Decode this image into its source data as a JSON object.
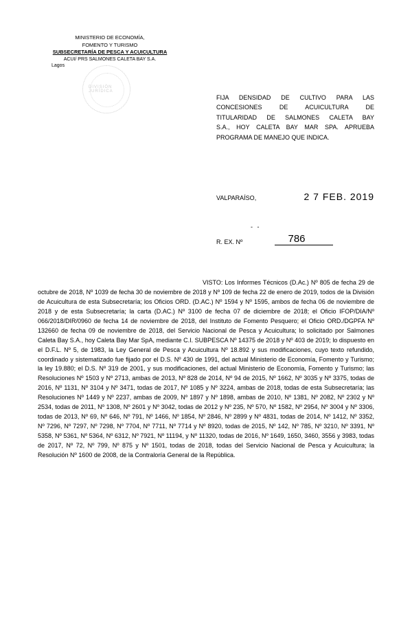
{
  "header": {
    "line1": "MINISTERIO DE ECONOMÍA,",
    "line2": "FOMENTO Y TURISMO",
    "line3": "SUBSECRETARÍA DE PESCA Y ACUICULTURA",
    "line4": "ACUI/ PRS SALMONES CALETA BAY S.A.",
    "line5": "Lagos"
  },
  "stamp": {
    "text": "DIVISIÓN JURÍDICA"
  },
  "title": {
    "line1": "FIJA DENSIDAD DE CULTIVO PARA LAS",
    "line2": "CONCESIONES DE ACUICULTURA DE",
    "line3": "TITULARIDAD DE SALMONES CALETA BAY",
    "line4": "S.A., HOY CALETA BAY MAR SPA. APRUEBA",
    "line5": "PROGRAMA DE MANEJO QUE INDICA."
  },
  "location": "VALPARAÍSO,",
  "date": "2 7 FEB. 2019",
  "rex": {
    "label": "R. EX. Nº",
    "number": "786"
  },
  "body": {
    "visto_label": "VISTO:",
    "text": "Los Informes Técnicos (D.Ac.) Nº 805 de fecha 29 de octubre de 2018, Nº 1039 de fecha 30 de noviembre de 2018 y Nº 109 de fecha 22 de enero de 2019, todos de la División de Acuicultura de esta Subsecretaría; los Oficios ORD. (D.AC.) Nº 1594 y Nº 1595, ambos de fecha 06 de noviembre de 2018 y de esta Subsecretaría; la carta (D.AC.) Nº 3100 de fecha 07 de diciembre de 2018; el Oficio IFOP/DIA/Nº 066/2018/DIR/0960 de fecha 14 de noviembre de 2018, del Instituto de Fomento Pesquero; el Oficio ORD./DGPFA Nº 132660 de fecha 09 de noviembre de 2018, del Servicio Nacional de Pesca y Acuicultura; lo solicitado por Salmones Caleta Bay S.A., hoy Caleta Bay Mar SpA, mediante C.I. SUBPESCA Nº 14375 de 2018 y Nº 403 de 2019; lo dispuesto en el D.F.L. Nº 5, de 1983, la Ley General de Pesca y Acuicultura Nº 18.892 y sus modificaciones, cuyo texto refundido, coordinado y sistematizado fue fijado por el D.S. Nº 430 de 1991, del actual Ministerio de Economía, Fomento y Turismo; la ley 19.880; el D.S. Nº 319 de 2001, y sus modificaciones, del actual Ministerio de Economía, Fomento y Turismo; las Resoluciones Nº 1503 y Nº 2713, ambas de 2013, Nº 828 de 2014, Nº 94 de 2015, Nº 1662, Nº 3035 y Nº 3375, todas de 2016, Nº 1131, Nº 3104 y Nº 3471, todas de 2017, Nº 1085 y Nº 3224, ambas de 2018, todas de esta Subsecretaría; las Resoluciones Nº 1449 y Nº 2237, ambas de 2009, Nº 1897 y Nº 1898, ambas de 2010, Nº 1381, Nº 2082, Nº 2302 y Nº 2534, todas de 2011, Nº 1308, Nº 2601 y Nº 3042, todas de 2012 y Nº 235, Nº 570, Nº 1582, Nº 2954, Nº 3004 y Nº 3306, todas de 2013, Nº 69, Nº 646, Nº 791, Nº 1466, Nº 1854, Nº 2846, Nº 2899 y Nº 4831, todas de 2014, Nº 1412, Nº 3352, Nº 7296, Nº 7297, Nº 7298, Nº 7704, Nº 7711, Nº 7714 y Nº 8920, todas de 2015, Nº 142, Nº 785, Nº 3210, Nº 3391, Nº 5358, Nº 5361, Nº 5364, Nº 6312, Nº 7921, Nº 11194, y Nº 11320, todas de 2016, Nº 1649, 1650, 3460, 3556 y 3983, todas de 2017, Nº 72, Nº 799, Nº 875 y Nº 1501, todas de 2018, todas del Servicio Nacional de Pesca y Acuicultura; la Resolución Nº 1600 de 2008, de la Contraloría General de la República."
  },
  "colors": {
    "text": "#000000",
    "background": "#ffffff",
    "stamp": "#888888"
  },
  "typography": {
    "body_fontsize": 9,
    "header_fontsize": 7.5,
    "title_fontsize": 9,
    "date_fontsize": 14,
    "rex_number_fontsize": 15
  }
}
